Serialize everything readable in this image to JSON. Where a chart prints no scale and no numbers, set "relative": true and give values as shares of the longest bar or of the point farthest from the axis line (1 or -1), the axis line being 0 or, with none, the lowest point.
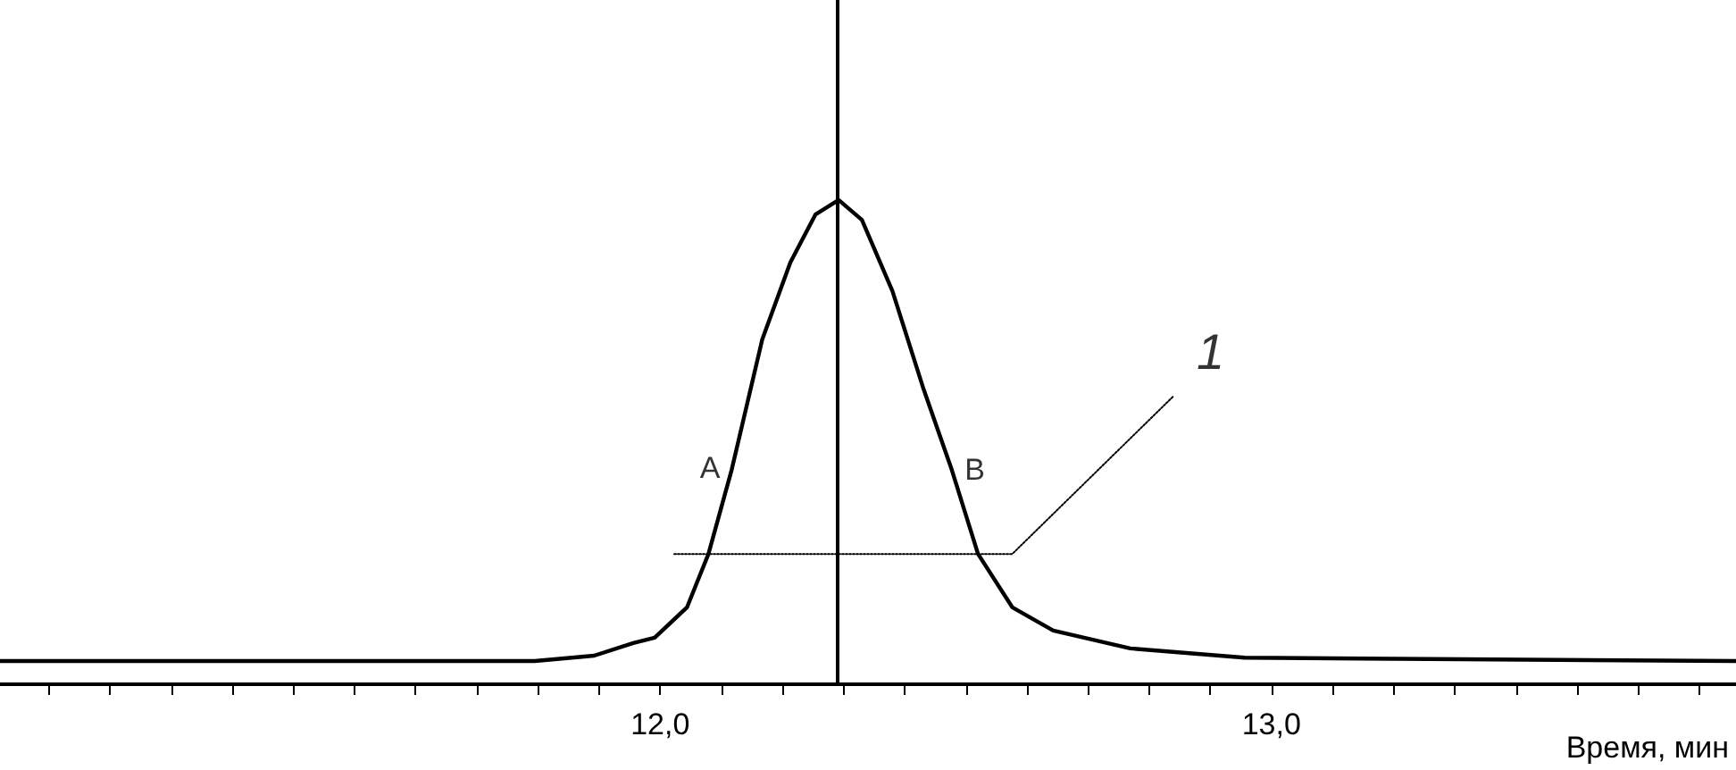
{
  "chart_data": {
    "type": "line",
    "relative": true,
    "xlabel": "Время, мин",
    "xlim": [
      10.92,
      13.76
    ],
    "xticks": [
      {
        "value": 11.0,
        "label": null
      },
      {
        "value": 11.1,
        "label": null
      },
      {
        "value": 11.2,
        "label": null
      },
      {
        "value": 11.3,
        "label": null
      },
      {
        "value": 11.4,
        "label": null
      },
      {
        "value": 11.5,
        "label": null
      },
      {
        "value": 11.6,
        "label": null
      },
      {
        "value": 11.7,
        "label": null
      },
      {
        "value": 11.8,
        "label": null
      },
      {
        "value": 11.9,
        "label": null
      },
      {
        "value": 12.0,
        "label": "12,0"
      },
      {
        "value": 12.1,
        "label": null
      },
      {
        "value": 12.2,
        "label": null
      },
      {
        "value": 12.3,
        "label": null
      },
      {
        "value": 12.4,
        "label": null
      },
      {
        "value": 12.5,
        "label": null
      },
      {
        "value": 12.6,
        "label": null
      },
      {
        "value": 12.7,
        "label": null
      },
      {
        "value": 12.8,
        "label": null
      },
      {
        "value": 12.9,
        "label": null
      },
      {
        "value": 13.0,
        "label": "13,0"
      },
      {
        "value": 13.1,
        "label": null
      },
      {
        "value": 13.2,
        "label": null
      },
      {
        "value": 13.3,
        "label": null
      },
      {
        "value": 13.4,
        "label": null
      },
      {
        "value": 13.5,
        "label": null
      },
      {
        "value": 13.6,
        "label": null
      },
      {
        "value": 13.7,
        "label": null
      }
    ],
    "marker": "none",
    "series": [
      {
        "color": "#000000",
        "line_style": "solid",
        "x": [
          10.92,
          11.795,
          11.892,
          11.956,
          11.991,
          12.044,
          12.079,
          12.117,
          12.167,
          12.213,
          12.254,
          12.292,
          12.33,
          12.38,
          12.43,
          12.477,
          12.52,
          12.576,
          12.643,
          12.769,
          12.956,
          13.257,
          13.76
        ],
        "values": [
          0.048,
          0.048,
          0.059,
          0.085,
          0.096,
          0.159,
          0.269,
          0.443,
          0.712,
          0.871,
          0.97,
          1,
          0.959,
          0.812,
          0.613,
          0.443,
          0.269,
          0.159,
          0.111,
          0.074,
          0.055,
          0.052,
          0.048
        ]
      },
      {
        "color": "#000000",
        "line_style": "dotted",
        "x": [
          12.023,
          12.576,
          12.839
        ],
        "values": [
          0.269,
          0.269,
          0.594
        ]
      }
    ],
    "ref_lines": [
      {
        "axis": "x",
        "value": 12.29,
        "color": "#000000"
      }
    ],
    "annotations": [
      "A",
      "B",
      "1"
    ]
  }
}
